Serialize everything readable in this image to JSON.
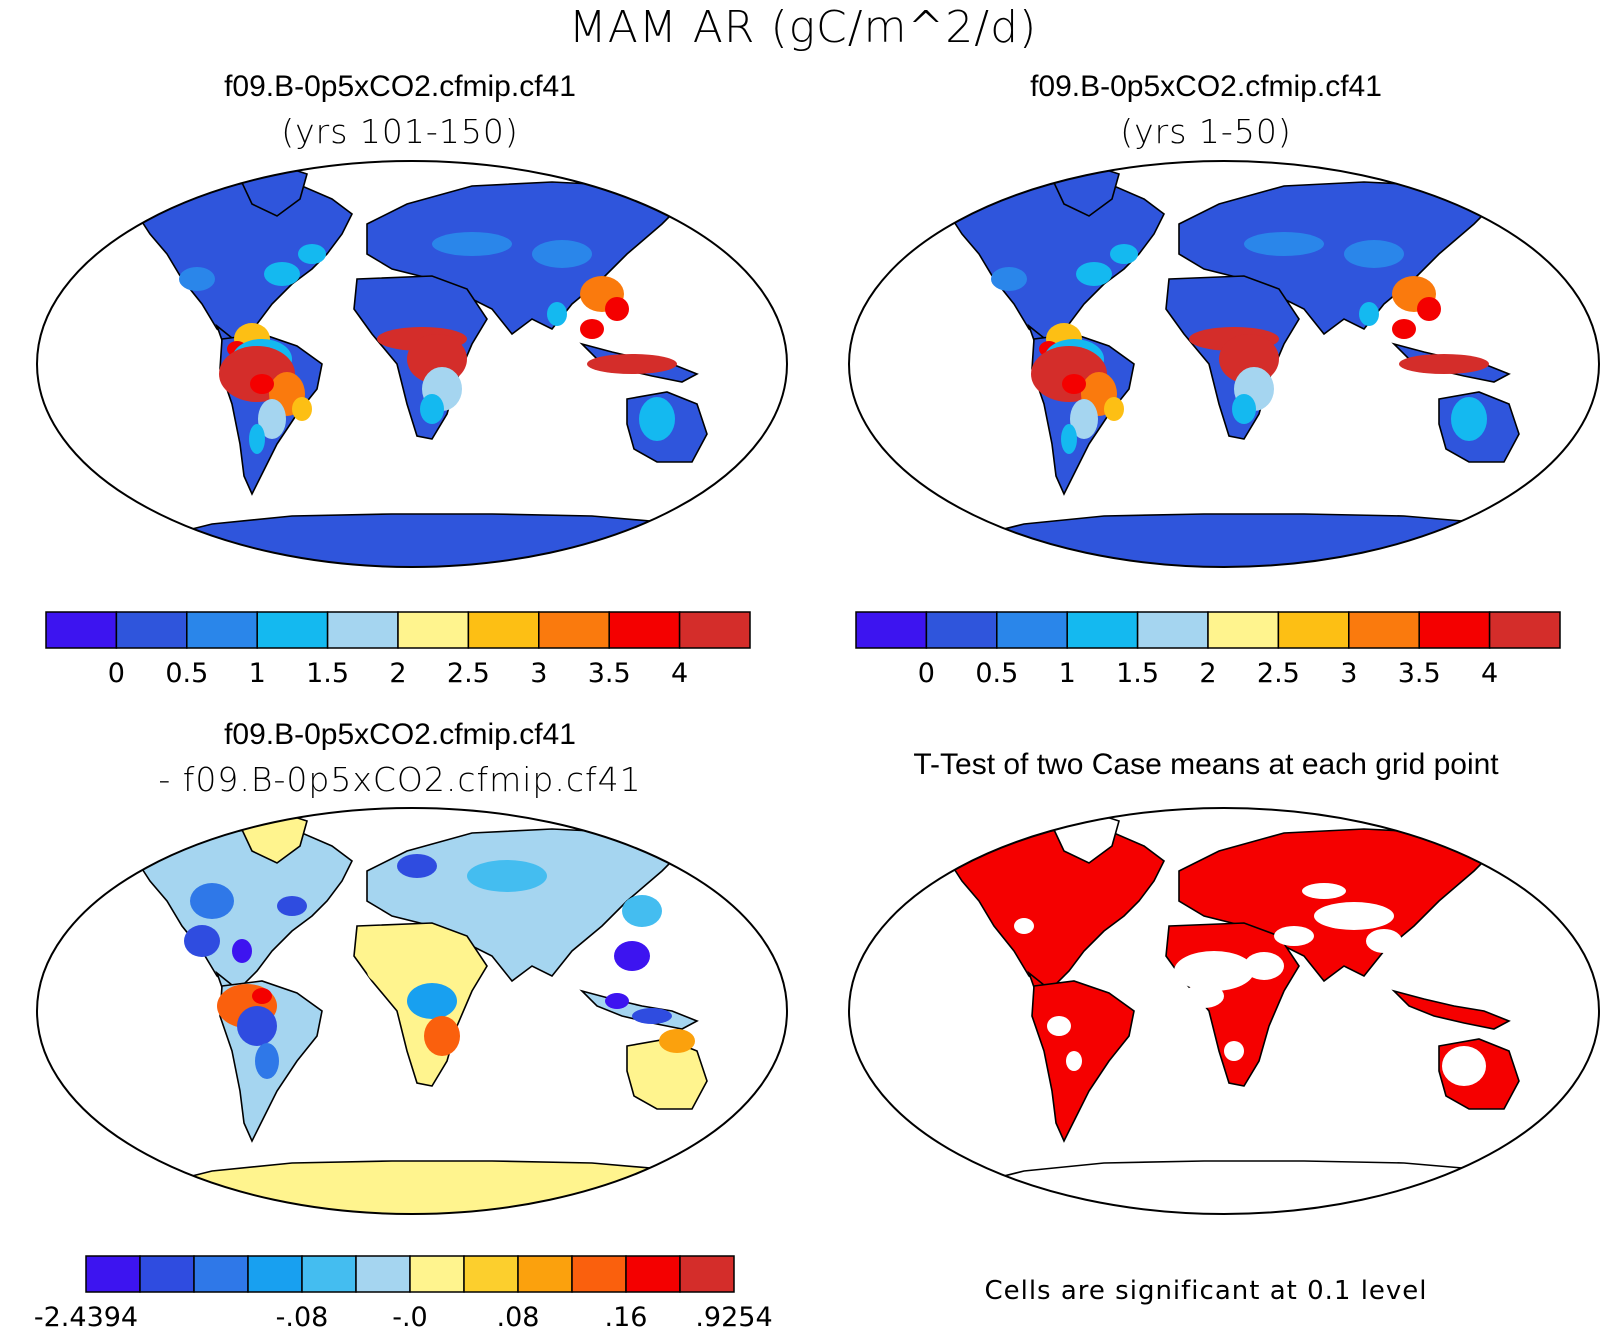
{
  "title": "MAM AR (gC/m^2/d)",
  "colors": {
    "scale_ar": [
      "#3d14f0",
      "#2f55dc",
      "#2a86ea",
      "#14b9f0",
      "#a5d5f0",
      "#fff48e",
      "#fdbf14",
      "#fa7a0d",
      "#f40000",
      "#d42d2a"
    ],
    "scale_diff": [
      "#3d14f0",
      "#2f4ce0",
      "#2f78e8",
      "#18a0f0",
      "#44bdf0",
      "#a5d5f0",
      "#fff48e",
      "#fccf2d",
      "#fba10d",
      "#fa600d",
      "#f40000",
      "#d42d2a"
    ],
    "significance": "#f50000",
    "land_base": "#2f55dc"
  },
  "panels": [
    {
      "id": "top-left",
      "title_line1": "f09.B-0p5xCO2.cfmip.cf41",
      "title_line2": "(yrs 101-150)",
      "colorbar_labels": [
        "0",
        "0.5",
        "1",
        "1.5",
        "2",
        "2.5",
        "3",
        "3.5",
        "4"
      ]
    },
    {
      "id": "top-right",
      "title_line1": "f09.B-0p5xCO2.cfmip.cf41",
      "title_line2": "(yrs 1-50)",
      "colorbar_labels": [
        "0",
        "0.5",
        "1",
        "1.5",
        "2",
        "2.5",
        "3",
        "3.5",
        "4"
      ]
    },
    {
      "id": "bottom-left",
      "title_line1": "f09.B-0p5xCO2.cfmip.cf41",
      "title_line2": "- f09.B-0p5xCO2.cfmip.cf41",
      "colorbar_labels": [
        "-2.4394",
        "-.08",
        "-.0",
        ".08",
        ".16",
        ".9254"
      ]
    },
    {
      "id": "bottom-right",
      "title_line1": "T-Test of two Case means at each grid point",
      "note": "Cells are significant at 0.1 level"
    }
  ]
}
